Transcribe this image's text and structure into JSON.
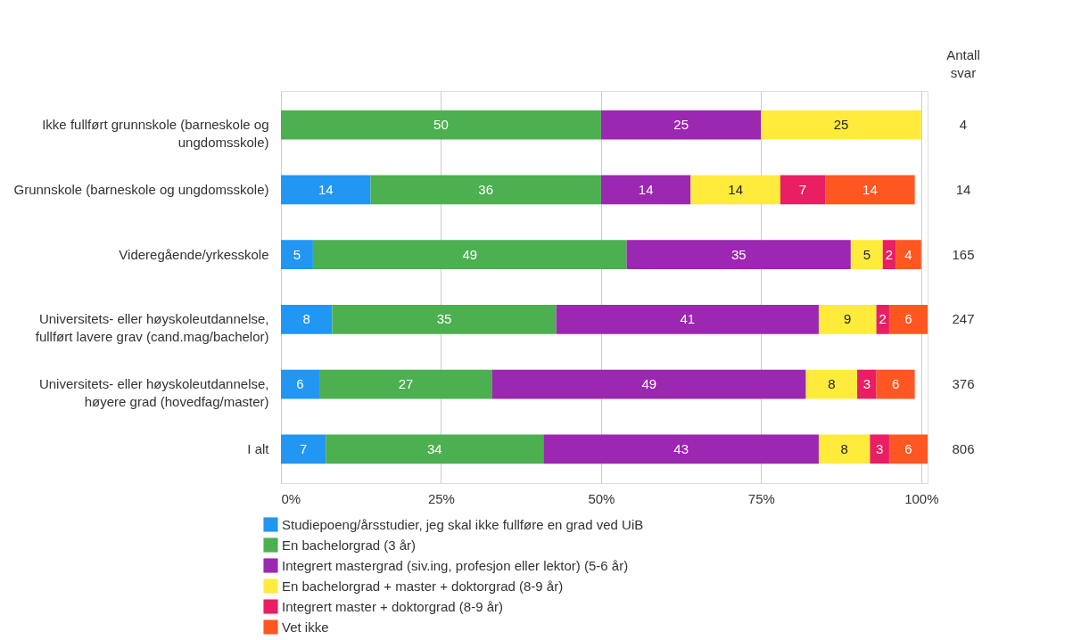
{
  "chart_data": {
    "type": "bar",
    "orientation": "horizontal",
    "stacked": true,
    "data_labels": true,
    "grid": "x",
    "legend": "bottom",
    "categories": [
      "Ikke fullført grunnskole (barneskole og ungdomsskole)",
      "Grunnskole  (barneskole og ungdomsskole)",
      "Videregående/yrkesskole",
      "Universitets- eller høyskoleutdannelse, fullført lavere grav  (cand.mag/bachelor)",
      "Universitets- eller høyskoleutdannelse, høyere grad (hovedfag/master)",
      "I alt"
    ],
    "series": [
      {
        "name": "Studiepoeng/årsstudier, jeg skal ikke fullføre en grad ved UiB",
        "color": "#2196f3",
        "values": [
          null,
          14,
          5,
          8,
          6,
          7
        ]
      },
      {
        "name": "En bachelorgrad (3 år)",
        "color": "#4caf50",
        "values": [
          50,
          36,
          49,
          35,
          27,
          34
        ]
      },
      {
        "name": "Integrert mastergrad (siv.ing, profesjon eller lektor) (5-6 år)",
        "color": "#9c27b0",
        "values": [
          25,
          14,
          35,
          41,
          49,
          43
        ]
      },
      {
        "name": "En bachelorgrad + master + doktorgrad (8-9 år)",
        "color": "#ffeb3b",
        "values": [
          25,
          14,
          5,
          9,
          8,
          8
        ]
      },
      {
        "name": "Integrert master + doktorgrad (8-9 år)",
        "color": "#e91e63",
        "values": [
          null,
          7,
          2,
          2,
          3,
          3
        ]
      },
      {
        "name": "Vet ikke",
        "color": "#ff5722",
        "values": [
          null,
          14,
          4,
          6,
          6,
          6
        ]
      }
    ],
    "xlim": [
      0,
      101
    ],
    "xticks": [
      {
        "value": 0,
        "label": "0%"
      },
      {
        "value": 25,
        "label": "25%"
      },
      {
        "value": 50,
        "label": "50%"
      },
      {
        "value": 75,
        "label": "75%"
      },
      {
        "value": 100,
        "label": "100%"
      }
    ],
    "annotations": [
      "Antall svar",
      "4",
      "14",
      "165",
      "247",
      "376",
      "806"
    ]
  }
}
